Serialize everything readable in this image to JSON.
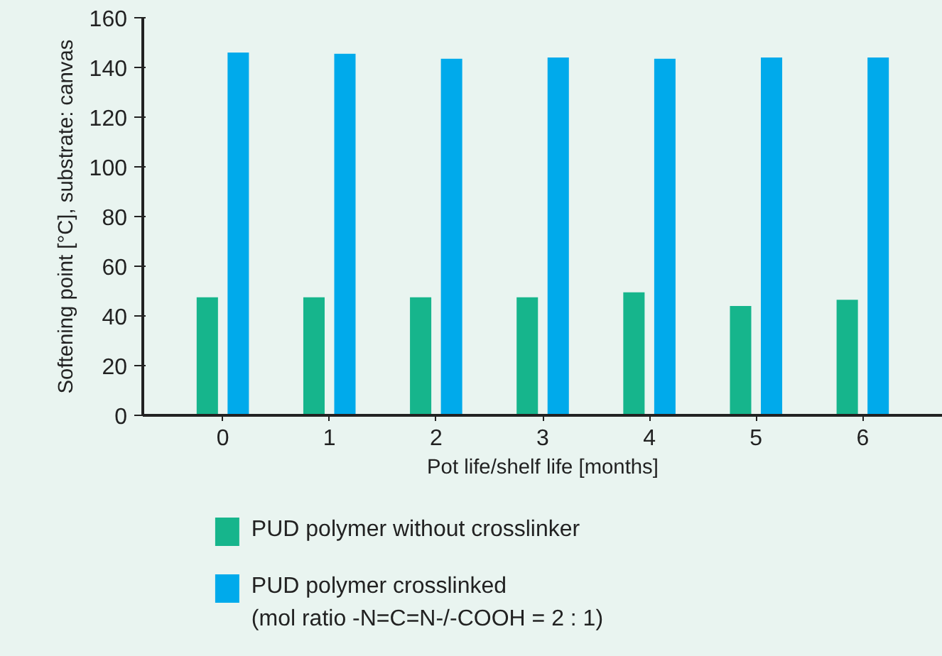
{
  "chart_data": {
    "type": "bar",
    "xlabel": "Pot life/shelf life [months]",
    "ylabel": "Softening point [°C], substrate: canvas",
    "categories": [
      "0",
      "1",
      "2",
      "3",
      "4",
      "5",
      "6"
    ],
    "series": [
      {
        "name": "PUD polymer without crosslinker",
        "color": "#16b58c",
        "values": [
          47.5,
          47.5,
          47.5,
          47.5,
          49.5,
          44,
          46.5
        ]
      },
      {
        "name": "PUD polymer crosslinked\n(mol ratio -N=C=N-/-COOH = 2 : 1)",
        "color": "#00aaeb",
        "values": [
          146,
          145.5,
          143.5,
          144,
          143.5,
          144,
          144
        ]
      }
    ],
    "ylim": [
      0,
      160
    ],
    "yticks": [
      0,
      20,
      40,
      60,
      80,
      100,
      120,
      140,
      160
    ],
    "grid": false,
    "legend": "bottom"
  }
}
